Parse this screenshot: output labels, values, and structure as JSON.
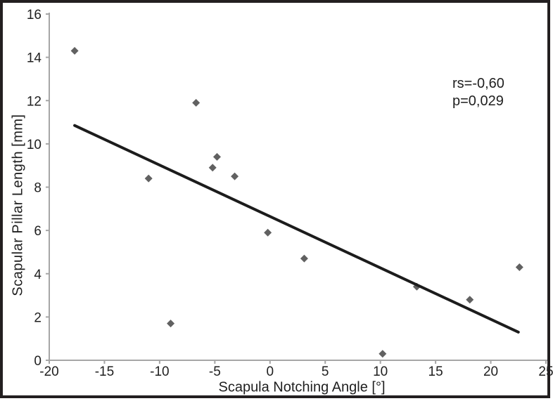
{
  "figure": {
    "annotation_line1": "rs=-0,60",
    "annotation_line2": "p=0,029"
  },
  "chart_data": {
    "type": "scatter",
    "title": "",
    "xlabel": "Scapula Notching Angle [°]",
    "ylabel": "Scapular Pillar Length [mm]",
    "xlim": [
      -20,
      25
    ],
    "ylim": [
      0,
      16
    ],
    "xticks": [
      -20,
      -15,
      -10,
      -5,
      0,
      5,
      10,
      15,
      20,
      25
    ],
    "yticks": [
      0,
      2,
      4,
      6,
      8,
      10,
      12,
      14,
      16
    ],
    "grid": false,
    "legend": "none",
    "marker": "diamond",
    "annotations": [
      "rs=-0,60",
      "p=0,029"
    ],
    "points": [
      {
        "x": -17.7,
        "y": 14.3
      },
      {
        "x": -11.0,
        "y": 8.4
      },
      {
        "x": -9.0,
        "y": 1.7
      },
      {
        "x": -6.7,
        "y": 11.9
      },
      {
        "x": -5.2,
        "y": 8.9
      },
      {
        "x": -4.8,
        "y": 9.4
      },
      {
        "x": -3.2,
        "y": 8.5
      },
      {
        "x": -0.2,
        "y": 5.9
      },
      {
        "x": 3.1,
        "y": 4.7
      },
      {
        "x": 10.2,
        "y": 0.3
      },
      {
        "x": 13.3,
        "y": 3.4
      },
      {
        "x": 18.1,
        "y": 2.8
      },
      {
        "x": 22.6,
        "y": 4.3
      }
    ],
    "trendline": {
      "type": "linear",
      "x1": -17.7,
      "y1": 10.85,
      "x2": 22.5,
      "y2": 1.3
    },
    "stats": {
      "rs": "-0,60",
      "p": "0,029"
    },
    "colors": {
      "point": "#616161",
      "trend": "#1c1c1c",
      "axis": "#a6a6a6",
      "text": "#1f1f1f",
      "frame": "#231f20"
    }
  }
}
